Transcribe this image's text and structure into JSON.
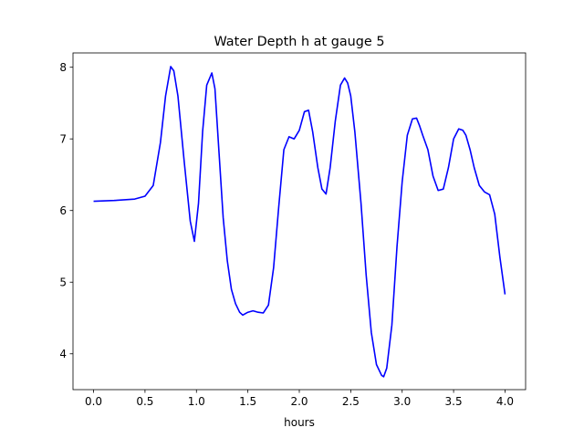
{
  "chart_data": {
    "type": "line",
    "title": "Water Depth h at gauge 5",
    "xlabel": "hours",
    "ylabel": "",
    "xlim": [
      -0.2,
      4.2
    ],
    "ylim": [
      3.5,
      8.2
    ],
    "xticks": [
      0.0,
      0.5,
      1.0,
      1.5,
      2.0,
      2.5,
      3.0,
      3.5,
      4.0
    ],
    "xtick_labels": [
      "0.0",
      "0.5",
      "1.0",
      "1.5",
      "2.0",
      "2.5",
      "3.0",
      "3.5",
      "4.0"
    ],
    "yticks": [
      4,
      5,
      6,
      7,
      8
    ],
    "ytick_labels": [
      "4",
      "5",
      "6",
      "7",
      "8"
    ],
    "grid": false,
    "series": [
      {
        "color": "#0000ff",
        "x": [
          0.0,
          0.2,
          0.4,
          0.5,
          0.58,
          0.65,
          0.7,
          0.75,
          0.78,
          0.82,
          0.88,
          0.94,
          0.98,
          1.02,
          1.06,
          1.1,
          1.15,
          1.18,
          1.22,
          1.26,
          1.3,
          1.34,
          1.38,
          1.42,
          1.45,
          1.5,
          1.55,
          1.6,
          1.65,
          1.7,
          1.75,
          1.8,
          1.85,
          1.9,
          1.95,
          2.0,
          2.05,
          2.09,
          2.13,
          2.18,
          2.22,
          2.26,
          2.3,
          2.35,
          2.4,
          2.44,
          2.47,
          2.5,
          2.54,
          2.6,
          2.65,
          2.7,
          2.75,
          2.8,
          2.82,
          2.85,
          2.9,
          2.95,
          3.0,
          3.05,
          3.1,
          3.14,
          3.17,
          3.2,
          3.25,
          3.3,
          3.35,
          3.4,
          3.45,
          3.5,
          3.55,
          3.59,
          3.62,
          3.66,
          3.7,
          3.75,
          3.8,
          3.85,
          3.9,
          3.95,
          4.0
        ],
        "y": [
          6.13,
          6.14,
          6.16,
          6.2,
          6.35,
          6.95,
          7.6,
          8.01,
          7.95,
          7.6,
          6.7,
          5.85,
          5.57,
          6.1,
          7.1,
          7.75,
          7.92,
          7.7,
          6.8,
          5.9,
          5.3,
          4.9,
          4.7,
          4.58,
          4.54,
          4.58,
          4.6,
          4.58,
          4.57,
          4.68,
          5.2,
          6.05,
          6.85,
          7.03,
          7.0,
          7.12,
          7.38,
          7.4,
          7.1,
          6.6,
          6.3,
          6.23,
          6.6,
          7.25,
          7.75,
          7.85,
          7.78,
          7.6,
          7.1,
          6.1,
          5.1,
          4.3,
          3.85,
          3.7,
          3.68,
          3.8,
          4.4,
          5.5,
          6.4,
          7.05,
          7.28,
          7.29,
          7.18,
          7.05,
          6.85,
          6.48,
          6.28,
          6.3,
          6.6,
          7.0,
          7.14,
          7.12,
          7.05,
          6.85,
          6.6,
          6.35,
          6.26,
          6.22,
          5.95,
          5.35,
          4.83
        ]
      }
    ]
  }
}
